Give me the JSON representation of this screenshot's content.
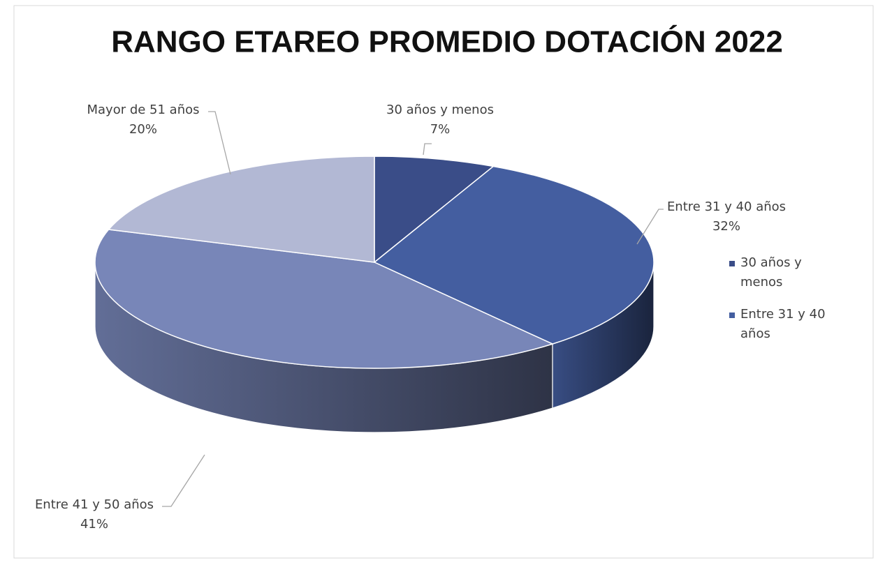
{
  "chart_data": {
    "type": "pie3d",
    "title": "RANGO ETAREO PROMEDIO DOTACIÓN 2022",
    "categories": [
      "30 años y menos",
      "Entre 31 y 40 años",
      "Entre 41 y 50 años",
      "Mayor de 51 años"
    ],
    "values": [
      7,
      32,
      41,
      20
    ],
    "value_labels": [
      "7%",
      "32%",
      "41%",
      "20%"
    ],
    "colors": [
      "#3a4d88",
      "#445ea0",
      "#7886b8",
      "#b2b8d4"
    ],
    "legend": {
      "position": "right",
      "entries": [
        0,
        1
      ]
    }
  }
}
